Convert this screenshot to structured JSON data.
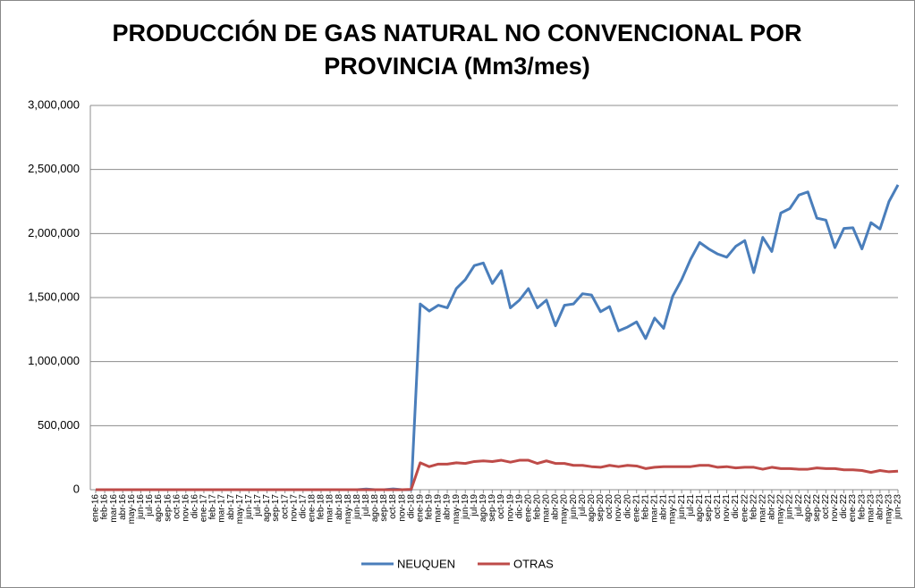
{
  "chart_data": {
    "type": "line",
    "title": "PRODUCCIÓN DE GAS NATURAL NO CONVENCIONAL POR PROVINCIA (Mm3/mes)",
    "categories": [
      "ene-16",
      "feb-16",
      "mar-16",
      "abr-16",
      "may-16",
      "jun-16",
      "jul-16",
      "ago-16",
      "sep-16",
      "oct-16",
      "nov-16",
      "dic-16",
      "ene-17",
      "feb-17",
      "mar-17",
      "abr-17",
      "may-17",
      "jun-17",
      "jul-17",
      "ago-17",
      "sep-17",
      "oct-17",
      "nov-17",
      "dic-17",
      "ene-18",
      "feb-18",
      "mar-18",
      "abr-18",
      "may-18",
      "jun-18",
      "jul-18",
      "ago-18",
      "sep-18",
      "oct-18",
      "nov-18",
      "dic-18",
      "ene-19",
      "feb-19",
      "mar-19",
      "abr-19",
      "may-19",
      "jun-19",
      "jul-19",
      "ago-19",
      "sep-19",
      "oct-19",
      "nov-19",
      "dic-19",
      "ene-20",
      "feb-20",
      "mar-20",
      "abr-20",
      "may-20",
      "jun-20",
      "jul-20",
      "ago-20",
      "sep-20",
      "oct-20",
      "nov-20",
      "dic-20",
      "ene-21",
      "feb-21",
      "mar-21",
      "abr-21",
      "may-21",
      "jun-21",
      "jul-21",
      "ago-21",
      "sep-21",
      "oct-21",
      "nov-21",
      "dic-21",
      "ene-22",
      "feb-22",
      "mar-22",
      "abr-22",
      "may-22",
      "jun-22",
      "jul-22",
      "ago-22",
      "sep-22",
      "oct-22",
      "nov-22",
      "dic-22",
      "ene-23",
      "feb-23",
      "mar-23",
      "abr-23",
      "may-23",
      "jun-23"
    ],
    "series": [
      {
        "name": "NEUQUEN",
        "color": "#4a7ebb",
        "values": [
          0,
          0,
          0,
          0,
          0,
          0,
          0,
          0,
          0,
          0,
          0,
          0,
          0,
          0,
          0,
          0,
          0,
          0,
          0,
          0,
          0,
          0,
          0,
          0,
          0,
          0,
          0,
          0,
          0,
          0,
          5000,
          0,
          0,
          6000,
          0,
          0,
          1450000,
          1395000,
          1440000,
          1420000,
          1570000,
          1640000,
          1750000,
          1770000,
          1610000,
          1710000,
          1420000,
          1480000,
          1570000,
          1420000,
          1480000,
          1280000,
          1440000,
          1450000,
          1530000,
          1520000,
          1390000,
          1430000,
          1240000,
          1270000,
          1310000,
          1180000,
          1340000,
          1260000,
          1510000,
          1640000,
          1800000,
          1930000,
          1880000,
          1840000,
          1815000,
          1900000,
          1945000,
          1695000,
          1970000,
          1860000,
          2160000,
          2195000,
          2300000,
          2325000,
          2120000,
          2105000,
          1890000,
          2040000,
          2045000,
          1880000,
          2085000,
          2035000,
          2250000,
          2380000
        ]
      },
      {
        "name": "OTRAS",
        "color": "#be4b48",
        "values": [
          0,
          0,
          0,
          0,
          0,
          0,
          0,
          0,
          0,
          0,
          0,
          0,
          0,
          0,
          0,
          0,
          0,
          0,
          0,
          0,
          0,
          0,
          0,
          0,
          0,
          0,
          0,
          0,
          0,
          0,
          0,
          0,
          0,
          0,
          0,
          3000,
          210000,
          180000,
          200000,
          200000,
          210000,
          205000,
          220000,
          225000,
          220000,
          230000,
          215000,
          230000,
          230000,
          205000,
          225000,
          205000,
          205000,
          190000,
          190000,
          180000,
          175000,
          190000,
          180000,
          190000,
          185000,
          165000,
          175000,
          180000,
          180000,
          180000,
          180000,
          190000,
          190000,
          175000,
          180000,
          170000,
          175000,
          175000,
          160000,
          175000,
          165000,
          165000,
          160000,
          160000,
          170000,
          165000,
          165000,
          155000,
          155000,
          150000,
          135000,
          150000,
          140000,
          145000
        ]
      }
    ],
    "ylim": [
      0,
      3000000
    ],
    "yticks": [
      0,
      {
        "value": 500000,
        "label": "500,000"
      },
      {
        "value": 1000000,
        "label": "1,000,000"
      },
      {
        "value": 1500000,
        "label": "1,500,000"
      },
      {
        "value": 2000000,
        "label": "2,000,000"
      },
      {
        "value": 2500000,
        "label": "2,500,000"
      },
      {
        "value": 3000000,
        "label": "3,000,000"
      }
    ],
    "grid": true,
    "legend": "bottom"
  }
}
